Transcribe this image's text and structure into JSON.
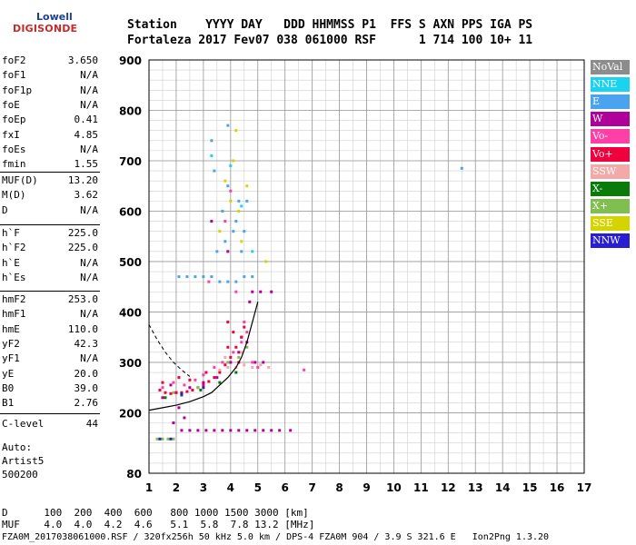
{
  "logo": {
    "line1": "Lowell",
    "line2": "DIGISONDE"
  },
  "header": {
    "line1": "Station    YYYY DAY   DDD HHMMSS P1  FFS S AXN PPS IGA PS",
    "line2": "Fortaleza 2017 Fev07 038 061000 RSF      1 714 100 10+ 11"
  },
  "params": {
    "group1": [
      {
        "name": "foF2",
        "value": "3.650"
      },
      {
        "name": "foF1",
        "value": "N/A"
      },
      {
        "name": "foF1p",
        "value": "N/A"
      },
      {
        "name": "foE",
        "value": "N/A"
      },
      {
        "name": "foEp",
        "value": "0.41"
      },
      {
        "name": "fxI",
        "value": "4.85"
      },
      {
        "name": "foEs",
        "value": "N/A"
      },
      {
        "name": "fmin",
        "value": "1.55"
      }
    ],
    "group2": [
      {
        "name": "MUF(D)",
        "value": "13.20"
      },
      {
        "name": "M(D)",
        "value": "3.62"
      },
      {
        "name": "D",
        "value": "N/A"
      }
    ],
    "group3": [
      {
        "name": "h`F",
        "value": "225.0"
      },
      {
        "name": "h`F2",
        "value": "225.0"
      },
      {
        "name": "h`E",
        "value": "N/A"
      },
      {
        "name": "h`Es",
        "value": "N/A"
      }
    ],
    "group4": [
      {
        "name": "hmF2",
        "value": "253.0"
      },
      {
        "name": "hmF1",
        "value": "N/A"
      },
      {
        "name": "hmE",
        "value": "110.0"
      },
      {
        "name": "yF2",
        "value": "42.3"
      },
      {
        "name": "yF1",
        "value": "N/A"
      },
      {
        "name": "yE",
        "value": "20.0"
      },
      {
        "name": "B0",
        "value": "39.0"
      },
      {
        "name": "B1",
        "value": "2.76"
      }
    ],
    "clevel": {
      "name": "C-level",
      "value": "44"
    },
    "auto": [
      "Auto:",
      "Artist5",
      "500200"
    ]
  },
  "legend": [
    {
      "label": "NoVal",
      "color": "#8c8c8c"
    },
    {
      "label": "NNE",
      "color": "#19d3f0"
    },
    {
      "label": "E",
      "color": "#4aa3ee"
    },
    {
      "label": "W",
      "color": "#b0009a"
    },
    {
      "label": "Vo-",
      "color": "#ff3fa6"
    },
    {
      "label": "Vo+",
      "color": "#f0003c"
    },
    {
      "label": "SSW",
      "color": "#f4a9a9"
    },
    {
      "label": "X-",
      "color": "#0a7a0a"
    },
    {
      "label": "X+",
      "color": "#7fbf50"
    },
    {
      "label": "SSE",
      "color": "#d4d400"
    },
    {
      "label": "NNW",
      "color": "#2a1ed2"
    }
  ],
  "bottom": {
    "line1": "D      100  200  400  600   800 1000 1500 3000 [km]",
    "line2": "MUF    4.0  4.0  4.2  4.6   5.1  5.8  7.8 13.2 [MHz]",
    "line3": "FZA0M_2017038061000.RSF / 320fx256h 50 kHz 5.0 km / DPS-4 FZA0M 904 / 3.9 S 321.6 E   Ion2Png 1.3.20"
  },
  "chart_data": {
    "type": "scatter",
    "title": "",
    "xlabel": "",
    "ylabel": "",
    "xlim": [
      1,
      17
    ],
    "ylim": [
      80,
      900
    ],
    "x_ticks": [
      1,
      2,
      3,
      4,
      5,
      6,
      7,
      8,
      9,
      10,
      11,
      12,
      13,
      14,
      15,
      16,
      17
    ],
    "y_ticks": [
      80,
      200,
      300,
      400,
      500,
      600,
      700,
      800,
      900
    ],
    "series": [
      {
        "name": "W",
        "color": "#b0009a",
        "points": [
          [
            1.9,
            180
          ],
          [
            2.2,
            165
          ],
          [
            2.5,
            165
          ],
          [
            2.8,
            165
          ],
          [
            3.1,
            165
          ],
          [
            3.4,
            165
          ],
          [
            3.7,
            165
          ],
          [
            4.0,
            165
          ],
          [
            4.3,
            165
          ],
          [
            4.6,
            165
          ],
          [
            4.9,
            165
          ],
          [
            5.2,
            165
          ],
          [
            5.5,
            165
          ],
          [
            5.8,
            165
          ],
          [
            6.2,
            165
          ],
          [
            2.3,
            190
          ],
          [
            2.1,
            210
          ],
          [
            4.8,
            440
          ],
          [
            5.1,
            440
          ],
          [
            5.5,
            440
          ],
          [
            4.7,
            420
          ],
          [
            2.0,
            240
          ],
          [
            2.5,
            250
          ],
          [
            3.0,
            260
          ],
          [
            3.5,
            270
          ],
          [
            4.0,
            300
          ],
          [
            4.3,
            320
          ],
          [
            4.6,
            340
          ],
          [
            1.5,
            230
          ],
          [
            1.8,
            255
          ],
          [
            3.3,
            580
          ],
          [
            3.9,
            520
          ],
          [
            4.4,
            350
          ],
          [
            4.9,
            300
          ],
          [
            5.2,
            300
          ]
        ]
      },
      {
        "name": "Vo+",
        "color": "#f0003c",
        "points": [
          [
            1.4,
            245
          ],
          [
            1.6,
            240
          ],
          [
            1.8,
            238
          ],
          [
            2.0,
            240
          ],
          [
            2.2,
            240
          ],
          [
            2.4,
            242
          ],
          [
            2.6,
            245
          ],
          [
            2.8,
            250
          ],
          [
            3.0,
            255
          ],
          [
            3.2,
            262
          ],
          [
            3.4,
            270
          ],
          [
            3.6,
            280
          ],
          [
            3.8,
            295
          ],
          [
            4.0,
            310
          ],
          [
            4.2,
            330
          ],
          [
            4.4,
            350
          ],
          [
            4.5,
            370
          ],
          [
            4.3,
            300
          ],
          [
            3.9,
            330
          ],
          [
            4.1,
            360
          ],
          [
            2.1,
            270
          ],
          [
            2.5,
            265
          ],
          [
            3.1,
            280
          ],
          [
            1.5,
            260
          ],
          [
            3.9,
            380
          ]
        ]
      },
      {
        "name": "Vo-",
        "color": "#ff3fa6",
        "points": [
          [
            1.5,
            250
          ],
          [
            1.9,
            260
          ],
          [
            2.3,
            255
          ],
          [
            2.7,
            265
          ],
          [
            3.0,
            275
          ],
          [
            3.4,
            290
          ],
          [
            3.7,
            300
          ],
          [
            4.1,
            320
          ],
          [
            4.4,
            340
          ],
          [
            4.6,
            360
          ],
          [
            4.8,
            300
          ],
          [
            5.0,
            290
          ],
          [
            4.2,
            440
          ],
          [
            3.2,
            460
          ],
          [
            4.0,
            640
          ],
          [
            3.8,
            580
          ],
          [
            4.5,
            380
          ],
          [
            6.7,
            285
          ]
        ]
      },
      {
        "name": "E",
        "color": "#4aa3ee",
        "points": [
          [
            2.1,
            470
          ],
          [
            2.4,
            470
          ],
          [
            2.7,
            470
          ],
          [
            3.0,
            470
          ],
          [
            3.3,
            470
          ],
          [
            3.6,
            460
          ],
          [
            3.9,
            460
          ],
          [
            4.2,
            460
          ],
          [
            4.5,
            470
          ],
          [
            4.8,
            470
          ],
          [
            3.5,
            520
          ],
          [
            3.8,
            540
          ],
          [
            4.1,
            560
          ],
          [
            4.4,
            520
          ],
          [
            3.7,
            600
          ],
          [
            3.9,
            650
          ],
          [
            4.2,
            580
          ],
          [
            4.6,
            620
          ],
          [
            3.3,
            740
          ],
          [
            3.9,
            770
          ],
          [
            4.3,
            620
          ],
          [
            3.4,
            680
          ],
          [
            4.5,
            560
          ],
          [
            12.5,
            685
          ]
        ]
      },
      {
        "name": "SSW",
        "color": "#f4a9a9",
        "points": [
          [
            4.2,
            290
          ],
          [
            4.5,
            295
          ],
          [
            4.8,
            290
          ],
          [
            5.1,
            295
          ],
          [
            5.4,
            290
          ],
          [
            3.9,
            290
          ],
          [
            3.6,
            285
          ],
          [
            3.8,
            310
          ],
          [
            4.4,
            320
          ]
        ]
      },
      {
        "name": "SSE",
        "color": "#d4d400",
        "points": [
          [
            3.6,
            560
          ],
          [
            4.0,
            620
          ],
          [
            4.3,
            600
          ],
          [
            4.6,
            650
          ],
          [
            3.8,
            660
          ],
          [
            4.1,
            700
          ],
          [
            4.4,
            540
          ],
          [
            5.3,
            500
          ],
          [
            4.2,
            760
          ]
        ]
      },
      {
        "name": "X+",
        "color": "#7fbf50",
        "points": [
          [
            1.3,
            148
          ],
          [
            1.5,
            148
          ],
          [
            1.7,
            148
          ],
          [
            1.9,
            148
          ],
          [
            3.9,
            300
          ],
          [
            4.3,
            310
          ],
          [
            4.6,
            330
          ],
          [
            2.8,
            250
          ],
          [
            1.9,
            240
          ]
        ]
      },
      {
        "name": "X-",
        "color": "#0a7a0a",
        "points": [
          [
            1.6,
            230
          ],
          [
            2.2,
            235
          ],
          [
            2.9,
            245
          ],
          [
            3.6,
            260
          ],
          [
            4.2,
            280
          ]
        ]
      },
      {
        "name": "NNE",
        "color": "#19d3f0",
        "points": [
          [
            3.3,
            710
          ],
          [
            4.0,
            690
          ],
          [
            4.4,
            610
          ],
          [
            4.8,
            520
          ]
        ]
      },
      {
        "name": "NNW",
        "color": "#2a1ed2",
        "points": [
          [
            1.4,
            148
          ],
          [
            1.8,
            148
          ],
          [
            2.2,
            237
          ],
          [
            3.0,
            250
          ]
        ]
      }
    ],
    "profile_curve": [
      [
        1.0,
        205
      ],
      [
        1.5,
        210
      ],
      [
        2.0,
        215
      ],
      [
        2.5,
        222
      ],
      [
        3.0,
        232
      ],
      [
        3.3,
        240
      ],
      [
        3.6,
        255
      ],
      [
        3.9,
        270
      ],
      [
        4.2,
        290
      ],
      [
        4.4,
        310
      ],
      [
        4.6,
        340
      ],
      [
        4.8,
        380
      ],
      [
        5.0,
        420
      ]
    ],
    "dashed_curve": [
      [
        1.0,
        375
      ],
      [
        1.3,
        345
      ],
      [
        1.6,
        320
      ],
      [
        1.9,
        300
      ],
      [
        2.2,
        285
      ],
      [
        2.5,
        272
      ]
    ]
  }
}
